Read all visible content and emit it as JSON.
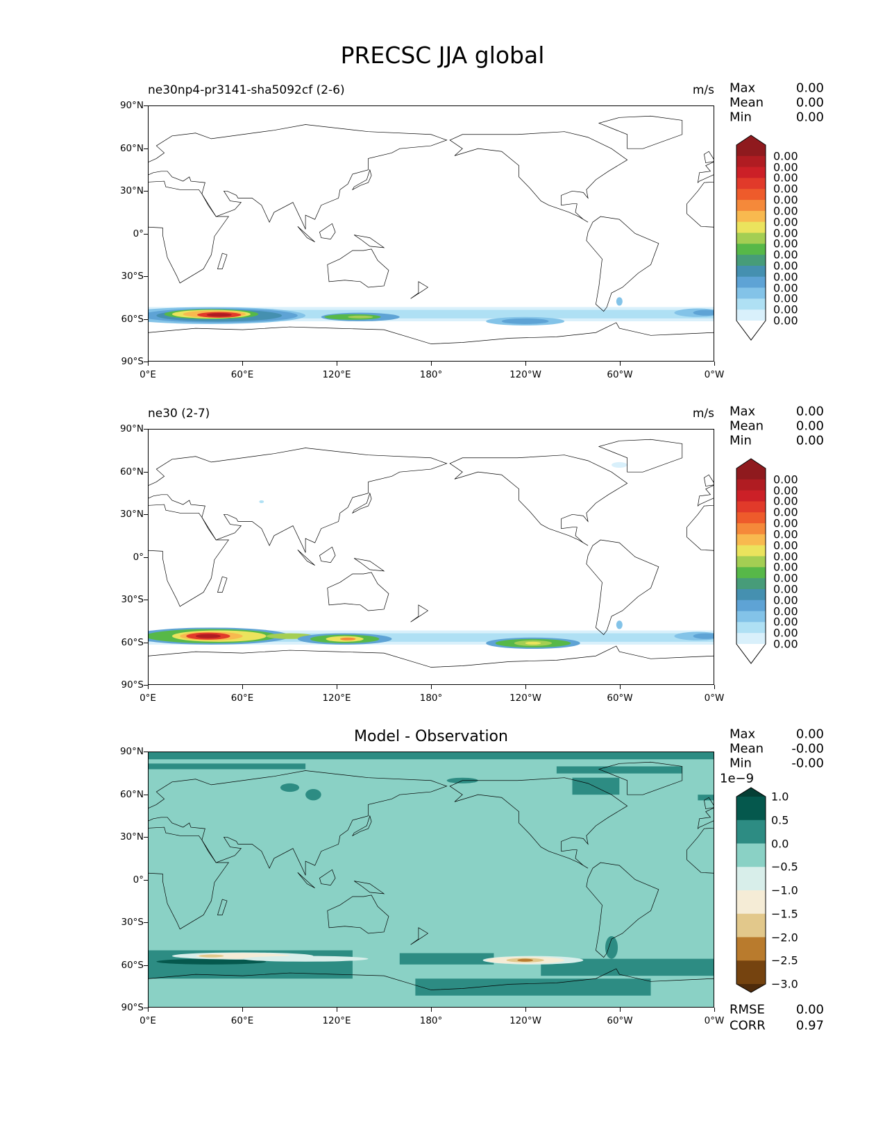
{
  "figure": {
    "title": "PRECSC JJA global"
  },
  "axes": {
    "y_ticks": [
      "90°N",
      "60°N",
      "30°N",
      "0°",
      "30°S",
      "60°S",
      "90°S"
    ],
    "x_ticks": [
      "0°E",
      "60°E",
      "120°E",
      "180°",
      "120°W",
      "60°W",
      "0°W"
    ]
  },
  "panels": [
    {
      "title_left": "ne30np4-pr3141-sha5092cf (2-6)",
      "title_center": "",
      "units": "m/s",
      "stats": [
        {
          "label": "Max",
          "value": "0.00"
        },
        {
          "label": "Mean",
          "value": "0.00"
        },
        {
          "label": "Min",
          "value": "0.00"
        }
      ],
      "colorbar": {
        "sci": "",
        "labels": [
          "0.00",
          "0.00",
          "0.00",
          "0.00",
          "0.00",
          "0.00",
          "0.00",
          "0.00",
          "0.00",
          "0.00",
          "0.00",
          "0.00",
          "0.00",
          "0.00",
          "0.00",
          "0.00"
        ],
        "colors": [
          "#8f1a1e",
          "#b01c22",
          "#cc2027",
          "#e13a2a",
          "#ee5b2b",
          "#f5893a",
          "#f8b94f",
          "#ebe35d",
          "#a4ce53",
          "#57b848",
          "#479c79",
          "#4590b0",
          "#5ea3d5",
          "#83c3e8",
          "#afe0f4",
          "#d9f0fb"
        ],
        "extend_top": "#8f1a1e",
        "extend_bottom": "#ffffff"
      },
      "footer": []
    },
    {
      "title_left": "ne30 (2-7)",
      "title_center": "",
      "units": "m/s",
      "stats": [
        {
          "label": "Max",
          "value": "0.00"
        },
        {
          "label": "Mean",
          "value": "0.00"
        },
        {
          "label": "Min",
          "value": "0.00"
        }
      ],
      "colorbar": {
        "sci": "",
        "labels": [
          "0.00",
          "0.00",
          "0.00",
          "0.00",
          "0.00",
          "0.00",
          "0.00",
          "0.00",
          "0.00",
          "0.00",
          "0.00",
          "0.00",
          "0.00",
          "0.00",
          "0.00",
          "0.00"
        ],
        "colors": [
          "#8f1a1e",
          "#b01c22",
          "#cc2027",
          "#e13a2a",
          "#ee5b2b",
          "#f5893a",
          "#f8b94f",
          "#ebe35d",
          "#a4ce53",
          "#57b848",
          "#479c79",
          "#4590b0",
          "#5ea3d5",
          "#83c3e8",
          "#afe0f4",
          "#d9f0fb"
        ],
        "extend_top": "#8f1a1e",
        "extend_bottom": "#ffffff"
      },
      "footer": []
    },
    {
      "title_left": "",
      "title_center": "Model - Observation",
      "units": "",
      "stats": [
        {
          "label": "Max",
          "value": "0.00"
        },
        {
          "label": "Mean",
          "value": "-0.00"
        },
        {
          "label": "Min",
          "value": "-0.00"
        }
      ],
      "colorbar": {
        "sci": "1e−9",
        "labels": [
          "1.0",
          "0.5",
          "0.0",
          "−0.5",
          "−1.0",
          "−1.5",
          "−2.0",
          "−2.5",
          "−3.0"
        ],
        "colors": [
          "#05584d",
          "#2d8c83",
          "#8ad1c5",
          "#d8eeea",
          "#f5ecd6",
          "#e2c88b",
          "#b97b2d",
          "#75430f"
        ],
        "extend_top": "#053f35",
        "extend_bottom": "#4e2b0b"
      },
      "footer": [
        {
          "label": "RMSE",
          "value": "0.00"
        },
        {
          "label": "CORR",
          "value": "0.97"
        }
      ]
    }
  ],
  "chart_data": [
    {
      "type": "heatmap",
      "title": "ne30np4-pr3141-sha5092cf (2-6)",
      "variable": "PRECSC",
      "season": "JJA",
      "units": "m/s",
      "xlim": [
        0,
        360
      ],
      "ylim": [
        -90,
        90
      ],
      "max": 0.0,
      "mean": 0.0,
      "min": 0.0,
      "features": [
        {
          "region": "Southern Ocean 60°E",
          "lat": -58,
          "level": "high"
        },
        {
          "region": "Southern Ocean 130°E",
          "lat": -60,
          "level": "moderate"
        },
        {
          "region": "Southern Ocean 120°W",
          "lat": -62,
          "level": "low"
        }
      ]
    },
    {
      "type": "heatmap",
      "title": "ne30 (2-7)",
      "variable": "PRECSC",
      "season": "JJA",
      "units": "m/s",
      "xlim": [
        0,
        360
      ],
      "ylim": [
        -90,
        90
      ],
      "max": 0.0,
      "mean": 0.0,
      "min": 0.0,
      "features": [
        {
          "region": "Southern Ocean 45°E",
          "lat": -57,
          "level": "high"
        },
        {
          "region": "Southern Ocean 125°E",
          "lat": -60,
          "level": "moderate-high"
        },
        {
          "region": "Southern Ocean 115°W",
          "lat": -62,
          "level": "moderate"
        }
      ]
    },
    {
      "type": "heatmap",
      "title": "Model - Observation",
      "xlim": [
        0,
        360
      ],
      "ylim": [
        -90,
        90
      ],
      "scale": "1e-9",
      "levels": [
        1.0,
        0.5,
        0.0,
        -0.5,
        -1.0,
        -1.5,
        -2.0,
        -2.5,
        -3.0
      ],
      "max": 0.0,
      "mean": -0.0,
      "min": -0.0,
      "rmse": 0.0,
      "corr": 0.97
    }
  ]
}
